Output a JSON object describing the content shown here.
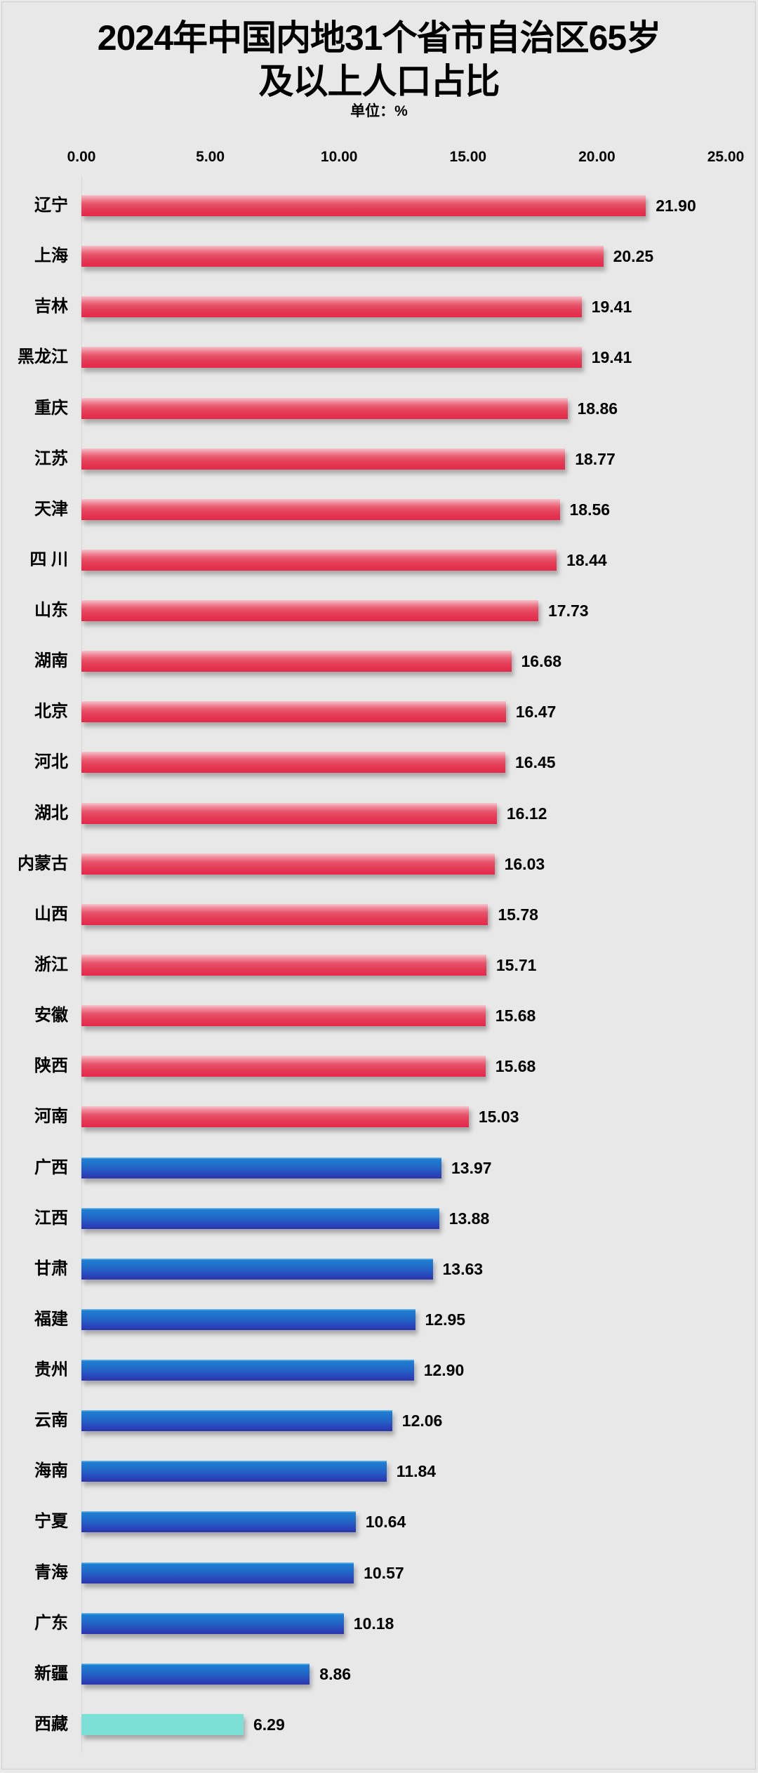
{
  "title": {
    "line1": "2024年中国内地31个省市自治区65岁",
    "line2": "及以上人口占比",
    "unit": "单位：%"
  },
  "axis": {
    "ticks": [
      "0.00",
      "5.00",
      "10.00",
      "15.00",
      "20.00",
      "25.00"
    ]
  },
  "colors": {
    "high_group": "#e5304f",
    "mid_group": "#2459c0",
    "low_group": "#7de0d6",
    "background": "#e8e8e8"
  },
  "rows": [
    {
      "label": "辽宁",
      "value": "21.90",
      "group": "red"
    },
    {
      "label": "上海",
      "value": "20.25",
      "group": "red"
    },
    {
      "label": "吉林",
      "value": "19.41",
      "group": "red"
    },
    {
      "label": "黑龙江",
      "value": "19.41",
      "group": "red"
    },
    {
      "label": "重庆",
      "value": "18.86",
      "group": "red"
    },
    {
      "label": "江苏",
      "value": "18.77",
      "group": "red"
    },
    {
      "label": "天津",
      "value": "18.56",
      "group": "red"
    },
    {
      "label": "四 川",
      "value": "18.44",
      "group": "red"
    },
    {
      "label": "山东",
      "value": "17.73",
      "group": "red"
    },
    {
      "label": "湖南",
      "value": "16.68",
      "group": "red"
    },
    {
      "label": "北京",
      "value": "16.47",
      "group": "red"
    },
    {
      "label": "河北",
      "value": "16.45",
      "group": "red"
    },
    {
      "label": "湖北",
      "value": "16.12",
      "group": "red"
    },
    {
      "label": "内蒙古",
      "value": "16.03",
      "group": "red"
    },
    {
      "label": "山西",
      "value": "15.78",
      "group": "red"
    },
    {
      "label": "浙江",
      "value": "15.71",
      "group": "red"
    },
    {
      "label": "安徽",
      "value": "15.68",
      "group": "red"
    },
    {
      "label": "陕西",
      "value": "15.68",
      "group": "red"
    },
    {
      "label": "河南",
      "value": "15.03",
      "group": "red"
    },
    {
      "label": "广西",
      "value": "13.97",
      "group": "blue"
    },
    {
      "label": "江西",
      "value": "13.88",
      "group": "blue"
    },
    {
      "label": "甘肃",
      "value": "13.63",
      "group": "blue"
    },
    {
      "label": "福建",
      "value": "12.95",
      "group": "blue"
    },
    {
      "label": "贵州",
      "value": "12.90",
      "group": "blue"
    },
    {
      "label": "云南",
      "value": "12.06",
      "group": "blue"
    },
    {
      "label": "海南",
      "value": "11.84",
      "group": "blue"
    },
    {
      "label": "宁夏",
      "value": "10.64",
      "group": "blue"
    },
    {
      "label": "青海",
      "value": "10.57",
      "group": "blue"
    },
    {
      "label": "广东",
      "value": "10.18",
      "group": "blue"
    },
    {
      "label": "新疆",
      "value": "8.86",
      "group": "blue"
    },
    {
      "label": "西藏",
      "value": "6.29",
      "group": "teal"
    }
  ],
  "chart_data": {
    "type": "bar",
    "orientation": "horizontal",
    "title": "2024年中国内地31个省市自治区65岁及以上人口占比",
    "subtitle": "单位：%",
    "xlabel": "",
    "ylabel": "",
    "xlim": [
      0,
      25
    ],
    "x_ticks": [
      0,
      5,
      10,
      15,
      20,
      25
    ],
    "x_tick_labels": [
      "0.00",
      "5.00",
      "10.00",
      "15.00",
      "20.00",
      "25.00"
    ],
    "x_axis_position": "top",
    "grid": false,
    "legend": null,
    "data_labels": true,
    "categories": [
      "辽宁",
      "上海",
      "吉林",
      "黑龙江",
      "重庆",
      "江苏",
      "天津",
      "四川",
      "山东",
      "湖南",
      "北京",
      "河北",
      "湖北",
      "内蒙古",
      "山西",
      "浙江",
      "安徽",
      "陕西",
      "河南",
      "广西",
      "江西",
      "甘肃",
      "福建",
      "贵州",
      "云南",
      "海南",
      "宁夏",
      "青海",
      "广东",
      "新疆",
      "西藏"
    ],
    "values": [
      21.9,
      20.25,
      19.41,
      19.41,
      18.86,
      18.77,
      18.56,
      18.44,
      17.73,
      16.68,
      16.47,
      16.45,
      16.12,
      16.03,
      15.78,
      15.71,
      15.68,
      15.68,
      15.03,
      13.97,
      13.88,
      13.63,
      12.95,
      12.9,
      12.06,
      11.84,
      10.64,
      10.57,
      10.18,
      8.86,
      6.29
    ],
    "bar_colors": {
      "red (values >= 14)": "#e5304f",
      "blue (7 <= values < 14)": "#2459c0",
      "teal (values < 7)": "#7de0d6"
    }
  }
}
